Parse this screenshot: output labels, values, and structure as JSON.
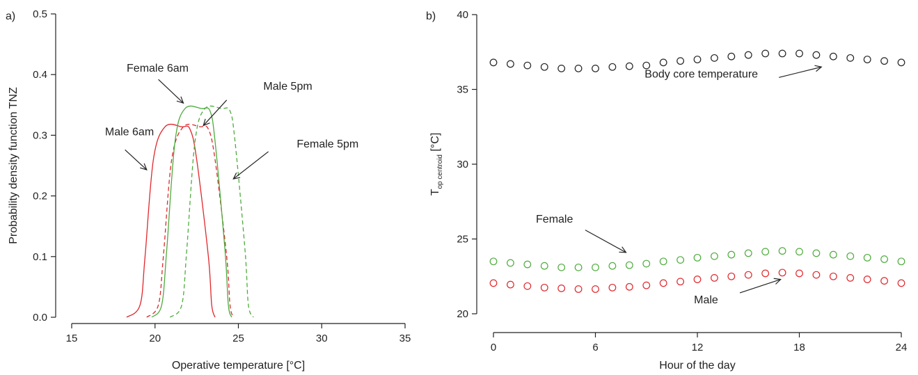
{
  "chart_data": [
    {
      "type": "line",
      "panel_label": "a)",
      "xlabel": "Operative temperature [°C]",
      "ylabel": "Probability density function TNZ",
      "xlim": [
        15,
        35
      ],
      "ylim": [
        0,
        0.5
      ],
      "xticks": [
        15,
        20,
        25,
        30,
        35
      ],
      "yticks": [
        0.0,
        0.1,
        0.2,
        0.3,
        0.4,
        0.5
      ],
      "ytick_labels": [
        "0.0",
        "0.1",
        "0.2",
        "0.3",
        "0.4",
        "0.5"
      ],
      "grid": false,
      "colors": {
        "male": "#e0262b",
        "female": "#4dab3c"
      },
      "series": [
        {
          "label": "Male 6am",
          "color": "#e0262b",
          "dash": "solid",
          "x": [
            18.3,
            19.1,
            19.4,
            19.9,
            20.6,
            21.6,
            22.1,
            22.5,
            23.2,
            23.4,
            23.6
          ],
          "y": [
            0.0,
            0.02,
            0.1,
            0.26,
            0.314,
            0.314,
            0.31,
            0.26,
            0.1,
            0.02,
            0.0
          ]
        },
        {
          "label": "Male 5pm",
          "color": "#e0262b",
          "dash": "dashed",
          "x": [
            19.5,
            20.2,
            20.5,
            21.0,
            21.7,
            22.7,
            23.2,
            23.6,
            24.3,
            24.5,
            24.7
          ],
          "y": [
            0.0,
            0.02,
            0.1,
            0.26,
            0.314,
            0.314,
            0.31,
            0.26,
            0.1,
            0.02,
            0.0
          ]
        },
        {
          "label": "Female 6am",
          "color": "#4dab3c",
          "dash": "solid",
          "x": [
            19.8,
            20.4,
            20.7,
            21.2,
            21.8,
            22.8,
            23.3,
            23.6,
            24.2,
            24.4,
            24.6
          ],
          "y": [
            0.0,
            0.02,
            0.11,
            0.29,
            0.344,
            0.344,
            0.34,
            0.29,
            0.11,
            0.02,
            0.0
          ]
        },
        {
          "label": "Female 5pm",
          "color": "#4dab3c",
          "dash": "dashed",
          "x": [
            20.9,
            21.6,
            21.9,
            22.4,
            23.0,
            24.0,
            24.5,
            24.8,
            25.4,
            25.6,
            25.9
          ],
          "y": [
            0.0,
            0.02,
            0.11,
            0.29,
            0.344,
            0.344,
            0.34,
            0.29,
            0.11,
            0.02,
            0.0
          ]
        }
      ],
      "annotations": [
        {
          "text": "Male 6am",
          "tx": 17.0,
          "ty": 0.3,
          "ax0": 18.2,
          "ay0": 0.276,
          "ax1": 19.5,
          "ay1": 0.243
        },
        {
          "text": "Female 6am",
          "tx": 18.3,
          "ty": 0.405,
          "ax0": 20.2,
          "ay0": 0.392,
          "ax1": 21.7,
          "ay1": 0.353
        },
        {
          "text": "Male 5pm",
          "tx": 26.5,
          "ty": 0.375,
          "ax0": 24.3,
          "ay0": 0.358,
          "ax1": 22.9,
          "ay1": 0.316
        },
        {
          "text": "Female 5pm",
          "tx": 28.5,
          "ty": 0.28,
          "ax0": 26.8,
          "ay0": 0.273,
          "ax1": 24.7,
          "ay1": 0.228
        }
      ]
    },
    {
      "type": "scatter",
      "panel_label": "b)",
      "xlabel": "Hour of the day",
      "ylabel_main": "T",
      "ylabel_sub": "op centroid",
      "ylabel_unit": " [°C]",
      "xlim": [
        0,
        24
      ],
      "ylim": [
        20,
        40
      ],
      "xticks": [
        0,
        6,
        12,
        18,
        24
      ],
      "yticks": [
        20,
        25,
        30,
        35,
        40
      ],
      "grid": false,
      "colors": {
        "body": "#222222",
        "female": "#4dab3c",
        "male": "#e0262b"
      },
      "series": [
        {
          "label": "Body core temperature",
          "color": "#222222",
          "x": [
            0,
            1,
            2,
            3,
            4,
            5,
            6,
            7,
            8,
            9,
            10,
            11,
            12,
            13,
            14,
            15,
            16,
            17,
            18,
            19,
            20,
            21,
            22,
            23,
            24
          ],
          "y": [
            36.8,
            36.7,
            36.6,
            36.5,
            36.4,
            36.4,
            36.4,
            36.5,
            36.55,
            36.6,
            36.8,
            36.9,
            37.0,
            37.1,
            37.2,
            37.3,
            37.4,
            37.4,
            37.4,
            37.3,
            37.2,
            37.1,
            37.0,
            36.9,
            36.8
          ]
        },
        {
          "label": "Female",
          "color": "#4dab3c",
          "x": [
            0,
            1,
            2,
            3,
            4,
            5,
            6,
            7,
            8,
            9,
            10,
            11,
            12,
            13,
            14,
            15,
            16,
            17,
            18,
            19,
            20,
            21,
            22,
            23,
            24
          ],
          "y": [
            23.5,
            23.4,
            23.3,
            23.2,
            23.1,
            23.1,
            23.1,
            23.2,
            23.25,
            23.35,
            23.5,
            23.6,
            23.75,
            23.85,
            23.95,
            24.05,
            24.15,
            24.2,
            24.15,
            24.05,
            23.95,
            23.85,
            23.75,
            23.65,
            23.5
          ]
        },
        {
          "label": "Male",
          "color": "#e0262b",
          "x": [
            0,
            1,
            2,
            3,
            4,
            5,
            6,
            7,
            8,
            9,
            10,
            11,
            12,
            13,
            14,
            15,
            16,
            17,
            18,
            19,
            20,
            21,
            22,
            23,
            24
          ],
          "y": [
            22.05,
            21.95,
            21.85,
            21.75,
            21.7,
            21.65,
            21.65,
            21.75,
            21.8,
            21.9,
            22.05,
            22.15,
            22.3,
            22.4,
            22.5,
            22.6,
            22.7,
            22.75,
            22.7,
            22.6,
            22.5,
            22.4,
            22.3,
            22.2,
            22.05
          ]
        }
      ],
      "annotations": [
        {
          "text": "Body core temperature",
          "tx": 8.9,
          "ty": 35.8,
          "ax0": 16.8,
          "ay0": 35.8,
          "ax1": 19.3,
          "ay1": 36.5
        },
        {
          "text": "Female",
          "tx": 2.5,
          "ty": 26.1,
          "ax0": 5.4,
          "ay0": 25.6,
          "ax1": 7.8,
          "ay1": 24.1
        },
        {
          "text": "Male",
          "tx": 11.8,
          "ty": 20.7,
          "ax0": 14.5,
          "ay0": 21.4,
          "ax1": 16.9,
          "ay1": 22.3
        }
      ]
    }
  ]
}
